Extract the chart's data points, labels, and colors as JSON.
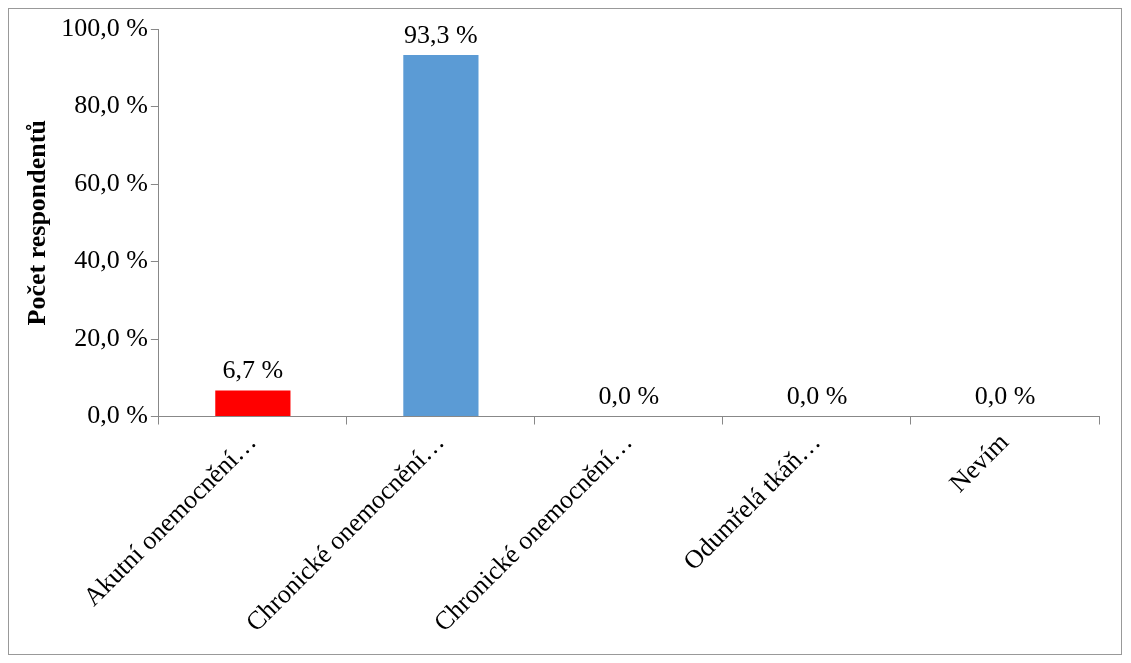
{
  "chart_data": {
    "type": "bar",
    "ylabel": "Počet respondentů",
    "categories": [
      "Akutní onemocnění…",
      "Chronické onemocnění…",
      "Chronické onemocnění…",
      "Odumřelá tkáň…",
      "Nevím"
    ],
    "values": [
      6.7,
      93.3,
      0,
      0,
      0
    ],
    "colors": [
      "#ff0000",
      "#5b9bd5",
      "#5b9bd5",
      "#5b9bd5",
      "#5b9bd5"
    ],
    "value_labels": [
      "6,7 %",
      "93,3 %",
      "0,0 %",
      "0,0 %",
      "0,0 %"
    ],
    "ylim": [
      0,
      100
    ],
    "yticks": [
      {
        "value": 0,
        "label": "0,0 %"
      },
      {
        "value": 20,
        "label": "20,0 %"
      },
      {
        "value": 40,
        "label": "40,0 %"
      },
      {
        "value": 60,
        "label": "60,0 %"
      },
      {
        "value": 80,
        "label": "80,0 %"
      },
      {
        "value": 100,
        "label": "100,0 %"
      }
    ],
    "grid": false,
    "legend": false
  }
}
